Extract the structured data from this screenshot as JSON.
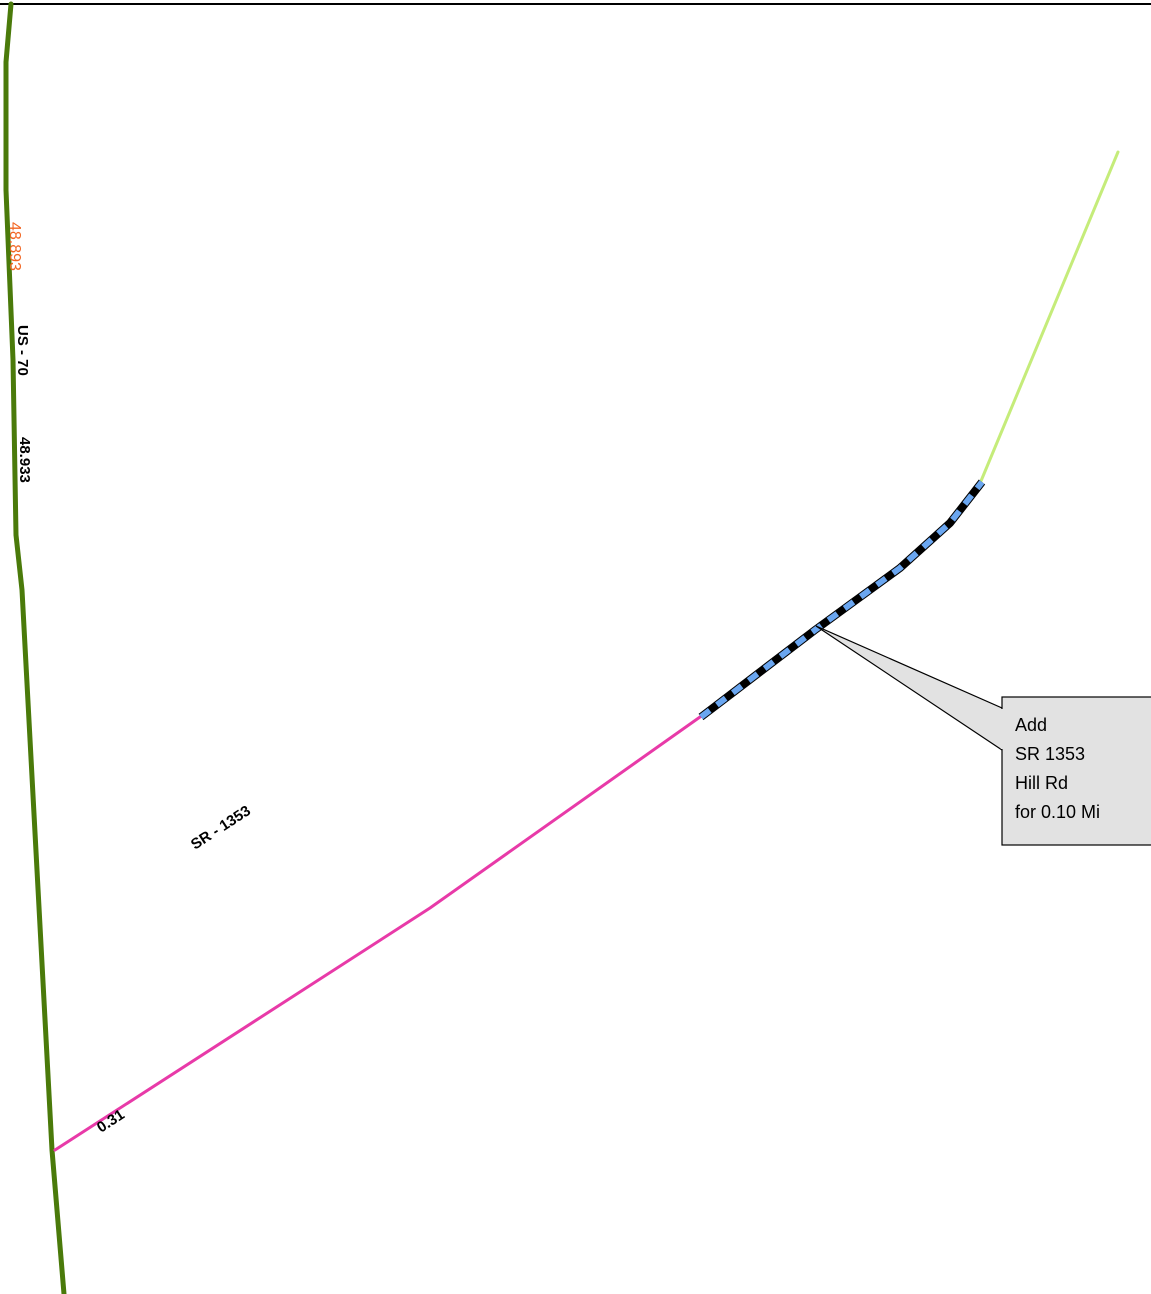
{
  "map": {
    "colors": {
      "us_route": "#4a7a0a",
      "sr_route": "#e83aa8",
      "added_segment_base": "#000000",
      "added_segment_dash": "#6aa6f0",
      "continuation_road": "#c5ec7a",
      "callout_fill": "#e2e2e2",
      "milepost_text": "#f26522"
    },
    "labels": {
      "us_route": "US - 70",
      "us_milepost_start": "48.893",
      "us_milepost_end": "48.933",
      "sr_route": "SR - 1353",
      "sr_milepost": "0.31"
    },
    "callout": {
      "lines": [
        "Add",
        "SR 1353",
        "Hill Rd",
        "for 0.10 Mi"
      ]
    }
  }
}
